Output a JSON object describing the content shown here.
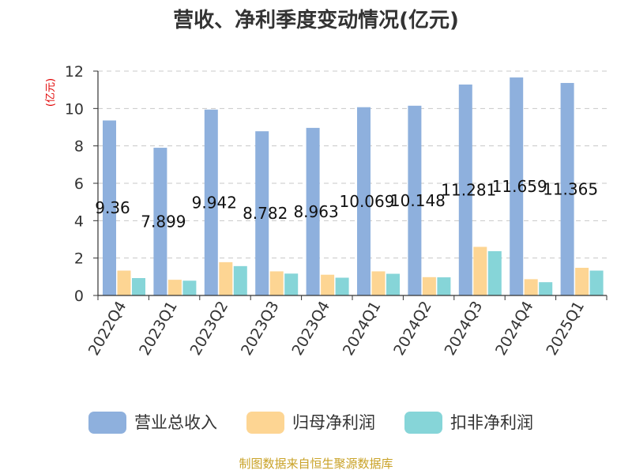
{
  "chart_data": {
    "type": "bar",
    "title": "营收、净利季度变动情况(亿元)",
    "unit_label": "(亿元)",
    "categories": [
      "2022Q4",
      "2023Q1",
      "2023Q2",
      "2023Q3",
      "2023Q4",
      "2024Q1",
      "2024Q2",
      "2024Q3",
      "2024Q4",
      "2025Q1"
    ],
    "series": [
      {
        "name": "营业总收入",
        "color": "#8eb0dd",
        "values": [
          9.36,
          7.899,
          9.942,
          8.782,
          8.963,
          10.069,
          10.148,
          11.281,
          11.659,
          11.365
        ],
        "labels": [
          "9.36",
          "7.899",
          "9.942",
          "8.782",
          "8.963",
          "10.069",
          "10.148",
          "11.281",
          "11.659",
          "11.365"
        ]
      },
      {
        "name": "归母净利润",
        "color": "#fdd593",
        "values": [
          1.33,
          0.84,
          1.78,
          1.29,
          1.11,
          1.29,
          0.98,
          2.6,
          0.87,
          1.48
        ]
      },
      {
        "name": "扣非净利润",
        "color": "#86d5d8",
        "values": [
          0.93,
          0.79,
          1.57,
          1.17,
          0.95,
          1.16,
          0.97,
          2.37,
          0.71,
          1.33
        ]
      }
    ],
    "ylim": [
      0,
      12
    ],
    "yticks": [
      0,
      2,
      4,
      6,
      8,
      10,
      12
    ],
    "grid": true,
    "legend": "bottom"
  },
  "source": "制图数据来自恒生聚源数据库"
}
